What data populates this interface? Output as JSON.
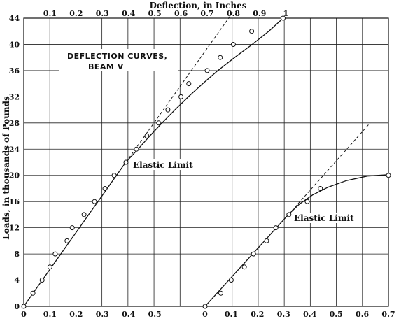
{
  "chart_data": {
    "type": "scatter",
    "title": "DEFLECTION CURVES, BEAM V",
    "title_lines": [
      "DEFLECTION CURVES,",
      "BEAM V"
    ],
    "xlabel_top": "Deflection, in Inches",
    "ylabel": "Loads, in thousands of Pounds",
    "ylim": [
      0,
      44
    ],
    "grid": true,
    "y_ticks": [
      "0",
      "4",
      "8",
      "12",
      "16",
      "20",
      "24",
      "28",
      "32",
      "36",
      "40",
      "44"
    ],
    "x_top_ticks": [
      "0.1",
      "0.2",
      "0.3",
      "0.4",
      "0.5",
      "0.6",
      "0.7",
      "0.8",
      "0.9",
      "1"
    ],
    "x_bottom_left_ticks": [
      "0",
      "0.1",
      "0.2",
      "0.3",
      "0.4",
      "0.5"
    ],
    "x_bottom_right_ticks": [
      "0",
      "0.1",
      "0.2",
      "0.3",
      "0.4",
      "0.5",
      "0.6",
      "0.7"
    ],
    "annotations": [
      "Elastic Limit",
      "Elastic Limit"
    ],
    "series": [
      {
        "axis": "left",
        "points": [
          [
            0,
            0
          ],
          [
            0.035,
            2
          ],
          [
            0.07,
            4
          ],
          [
            0.1,
            6
          ],
          [
            0.12,
            8
          ],
          [
            0.165,
            10
          ],
          [
            0.185,
            12
          ],
          [
            0.23,
            14
          ],
          [
            0.27,
            16
          ],
          [
            0.31,
            18
          ],
          [
            0.345,
            20
          ],
          [
            0.39,
            22
          ],
          [
            0.43,
            24
          ],
          [
            0.47,
            26
          ],
          [
            0.515,
            28
          ],
          [
            0.55,
            30
          ],
          [
            0.6,
            32
          ],
          [
            0.63,
            34
          ],
          [
            0.7,
            36
          ],
          [
            0.75,
            38
          ],
          [
            0.8,
            40
          ],
          [
            0.87,
            42
          ],
          [
            0.99,
            44
          ]
        ],
        "elastic_limit": 22
      },
      {
        "axis": "right",
        "points": [
          [
            0,
            0
          ],
          [
            0.06,
            2
          ],
          [
            0.1,
            4
          ],
          [
            0.15,
            6
          ],
          [
            0.185,
            8
          ],
          [
            0.235,
            10
          ],
          [
            0.27,
            12
          ],
          [
            0.32,
            14
          ],
          [
            0.39,
            16
          ],
          [
            0.44,
            18
          ],
          [
            0.7,
            20
          ]
        ],
        "elastic_limit": 14
      }
    ]
  }
}
